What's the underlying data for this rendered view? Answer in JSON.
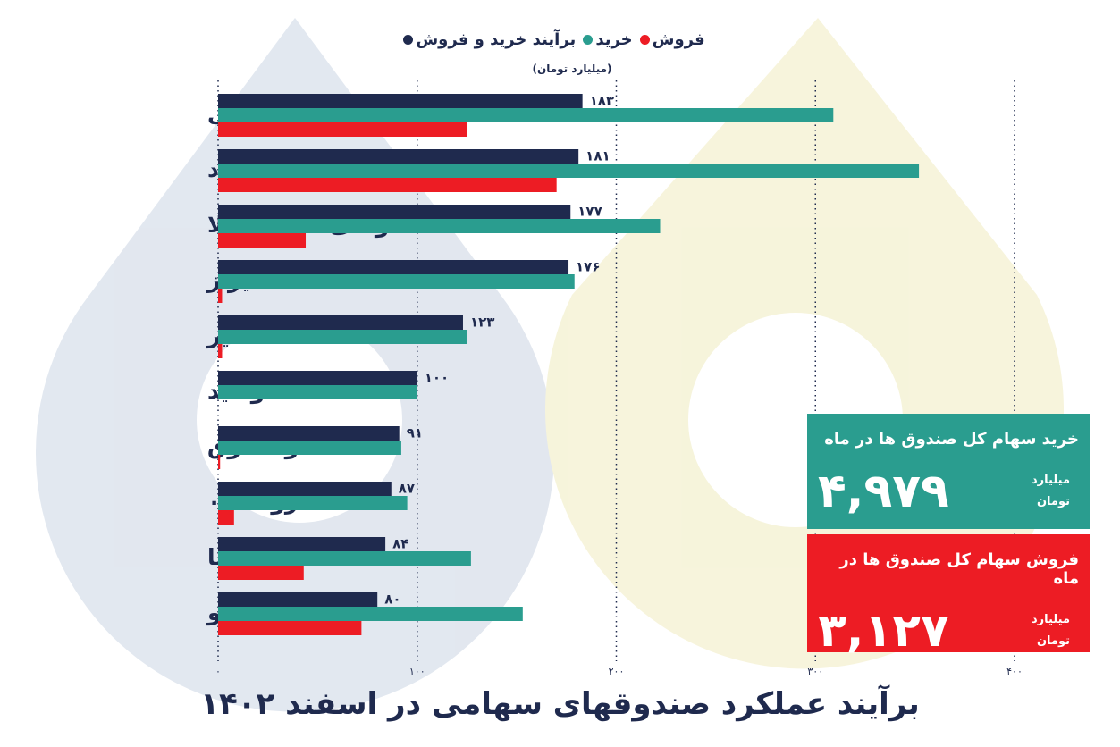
{
  "chart_data": {
    "type": "hbar",
    "title": "برآیند عملکرد صندوقهای سهامی در اسفند ۱۴۰۲",
    "subtitle": "(میلیارد تومان)",
    "categories": [
      "فملی",
      "فولاد",
      "گواهی شمش طلا",
      "شیراز",
      "فغدیر",
      "وامید",
      "وصندوق",
      "داروک۰۷۲",
      "شستا",
      "خودرو"
    ],
    "series": [
      {
        "name": "برآیند خرید و فروش",
        "color": "#1f2a4e",
        "values": [
          183,
          181,
          177,
          176,
          123,
          100,
          91,
          87,
          84,
          80
        ],
        "value_labels": [
          "۱۸۳",
          "۱۸۱",
          "۱۷۷",
          "۱۷۶",
          "۱۲۳",
          "۱۰۰",
          "۹۱",
          "۸۷",
          "۸۴",
          "۸۰"
        ]
      },
      {
        "name": "خرید",
        "color": "#2a9d8f",
        "values": [
          309,
          352,
          222,
          179,
          125,
          100,
          92,
          95,
          127,
          153
        ]
      },
      {
        "name": "فروش",
        "color": "#ed1c24",
        "values": [
          125,
          170,
          44,
          2,
          2,
          0,
          1,
          8,
          43,
          72
        ]
      }
    ],
    "xlim": [
      0,
      400
    ],
    "xticks": [
      {
        "value": 0,
        "label": "۰"
      },
      {
        "value": 100,
        "label": "۱۰۰"
      },
      {
        "value": 200,
        "label": "۲۰۰"
      },
      {
        "value": 300,
        "label": "۳۰۰"
      },
      {
        "value": 400,
        "label": "۴۰۰"
      }
    ],
    "grid": true,
    "summary": [
      {
        "title": "خرید سهام کل صندوق ها در ماه",
        "value": 4979,
        "value_label": "۴,۹۷۹",
        "unit": [
          "میلیارد",
          "تومان"
        ],
        "color": "#2a9d8f"
      },
      {
        "title": "فروش سهام کل صندوق ها در ماه",
        "value": 3127,
        "value_label": "۳,۱۲۷",
        "unit": [
          "میلیارد",
          "تومان"
        ],
        "color": "#ed1c24"
      }
    ]
  }
}
